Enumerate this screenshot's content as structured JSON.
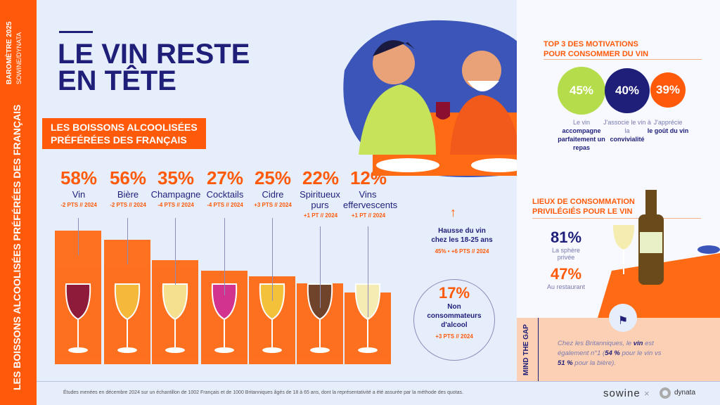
{
  "strip": {
    "top": "BAROMÈTRE 2025",
    "sub": "SOWINE/DYNATA",
    "side": "LES BOISSONS ALCOOLISÉES PRÉFÉRÉES DES FRANÇAIS"
  },
  "title": {
    "line1": "LE VIN RESTE",
    "line2": "EN TÊTE"
  },
  "subtitle": {
    "line1": "LES BOISSONS ALCOOLISÉES",
    "line2": "PRÉFÉRÉES DES FRANÇAIS"
  },
  "drinks": [
    {
      "pct": "58%",
      "label": "Vin",
      "delta": "-2 PTS // 2024",
      "value": 58
    },
    {
      "pct": "56%",
      "label": "Bière",
      "delta": "-2 PTS // 2024",
      "value": 56
    },
    {
      "pct": "35%",
      "label": "Champagne",
      "delta": "-4 PTS // 2024",
      "value": 35
    },
    {
      "pct": "27%",
      "label": "Cocktails",
      "delta": "-4 PTS // 2024",
      "value": 27
    },
    {
      "pct": "25%",
      "label": "Cidre",
      "delta": "+3 PTS // 2024",
      "value": 25
    },
    {
      "pct": "22%",
      "label": "Spiritueux purs",
      "delta": "+1 PT // 2024",
      "value": 22
    },
    {
      "pct": "12%",
      "label": "Vins effervescents",
      "delta": "+1 PT // 2024",
      "value": 12
    }
  ],
  "young": {
    "line1": "Hausse du vin",
    "line2": "chez les 18-25 ans",
    "delta": "45% • +6 PTS // 2024"
  },
  "non": {
    "pct": "17%",
    "l1": "Non",
    "l2": "consommateurs",
    "l3": "d'alcool",
    "delta": "+3 PTS // 2024"
  },
  "motiv": {
    "h1": "TOP 3 DES MOTIVATIONS",
    "h2": "POUR CONSOMMER DU VIN",
    "items": [
      {
        "pct": "45%",
        "a": "Le vin",
        "b": "accompagne parfaitement un repas",
        "color": "#b5dc4a"
      },
      {
        "pct": "40%",
        "a": "J'associe le vin à la",
        "b": "convivialité",
        "color": "#1f1f7a"
      },
      {
        "pct": "39%",
        "a": "J'apprécie",
        "b": "le goût du vin",
        "color": "#ff5a0a"
      }
    ]
  },
  "lieux": {
    "h1": "LIEUX DE CONSOMMATION",
    "h2": "PRIVILÉGIÉS POUR LE VIN",
    "p1": "81%",
    "l1": "La sphère privée",
    "p2": "47%",
    "l2": "Au restaurant"
  },
  "mind": {
    "tag": "MIND THE GAP",
    "t1": "Chez les Britanniques, le ",
    "b1": "vin",
    "t2": " est également n°1 (",
    "b2": "54 %",
    "t3": " pour le vin vs ",
    "b3": "51 %",
    "t4": " pour la bière)."
  },
  "footer": {
    "note": "Études menées en décembre 2024 sur un échantillon de 1002 Français et de 1000 Britanniques âgés de 18 à 65 ans, dont la représentativité a été assurée par la méthode des quotas.",
    "logo1": "sowine",
    "times": "×",
    "logo2": "dynata"
  }
}
